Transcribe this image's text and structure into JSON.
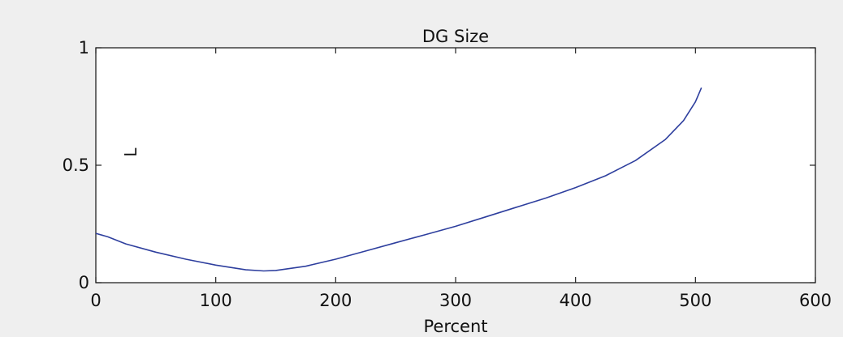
{
  "chart_data": {
    "type": "line",
    "title": "DG Size",
    "xlabel": "Percent",
    "ylabel": "L",
    "xlim": [
      0,
      600
    ],
    "ylim": [
      0,
      1
    ],
    "xticks": [
      0,
      100,
      200,
      300,
      400,
      500,
      600
    ],
    "xtick_labels": [
      "0",
      "100",
      "200",
      "300",
      "400",
      "500",
      "600"
    ],
    "yticks": [
      0,
      0.5,
      1
    ],
    "ytick_labels": [
      "0",
      "0.5",
      "1"
    ],
    "grid": false,
    "series": [
      {
        "color": "#2e3f9e",
        "x": [
          0,
          10,
          25,
          50,
          75,
          100,
          125,
          140,
          150,
          175,
          200,
          225,
          250,
          275,
          300,
          325,
          350,
          375,
          400,
          425,
          450,
          475,
          490,
          500,
          505
        ],
        "y": [
          0.21,
          0.195,
          0.165,
          0.13,
          0.1,
          0.075,
          0.055,
          0.05,
          0.052,
          0.07,
          0.1,
          0.135,
          0.17,
          0.205,
          0.24,
          0.28,
          0.32,
          0.36,
          0.405,
          0.455,
          0.52,
          0.61,
          0.69,
          0.77,
          0.83
        ]
      }
    ]
  },
  "colors": {
    "background": "#efefef",
    "plot_area": "#ffffff",
    "line": "#2e3f9e",
    "axes": "#222222"
  }
}
